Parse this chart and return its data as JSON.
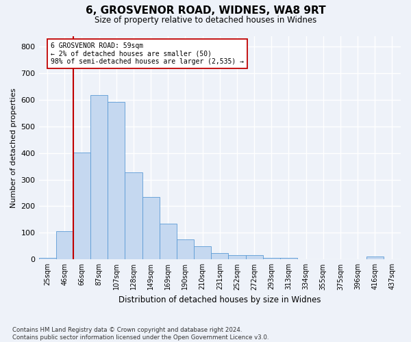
{
  "title_line1": "6, GROSVENOR ROAD, WIDNES, WA8 9RT",
  "title_line2": "Size of property relative to detached houses in Widnes",
  "xlabel": "Distribution of detached houses by size in Widnes",
  "ylabel": "Number of detached properties",
  "categories": [
    "25sqm",
    "46sqm",
    "66sqm",
    "87sqm",
    "107sqm",
    "128sqm",
    "149sqm",
    "169sqm",
    "190sqm",
    "210sqm",
    "231sqm",
    "252sqm",
    "272sqm",
    "293sqm",
    "313sqm",
    "334sqm",
    "355sqm",
    "375sqm",
    "396sqm",
    "416sqm",
    "437sqm"
  ],
  "values": [
    7,
    105,
    402,
    617,
    592,
    328,
    235,
    135,
    75,
    50,
    25,
    15,
    15,
    5,
    5,
    0,
    0,
    0,
    0,
    10,
    0
  ],
  "bar_color": "#c5d8f0",
  "bar_edge_color": "#5b9bd5",
  "vline_x": 1.5,
  "vline_color": "#c00000",
  "annotation_text": "6 GROSVENOR ROAD: 59sqm\n← 2% of detached houses are smaller (50)\n98% of semi-detached houses are larger (2,535) →",
  "annotation_box_color": "#ffffff",
  "annotation_box_edge": "#c00000",
  "ylim": [
    0,
    840
  ],
  "yticks": [
    0,
    100,
    200,
    300,
    400,
    500,
    600,
    700,
    800
  ],
  "bg_color": "#eef2f9",
  "grid_color": "#ffffff",
  "footnote": "Contains HM Land Registry data © Crown copyright and database right 2024.\nContains public sector information licensed under the Open Government Licence v3.0."
}
